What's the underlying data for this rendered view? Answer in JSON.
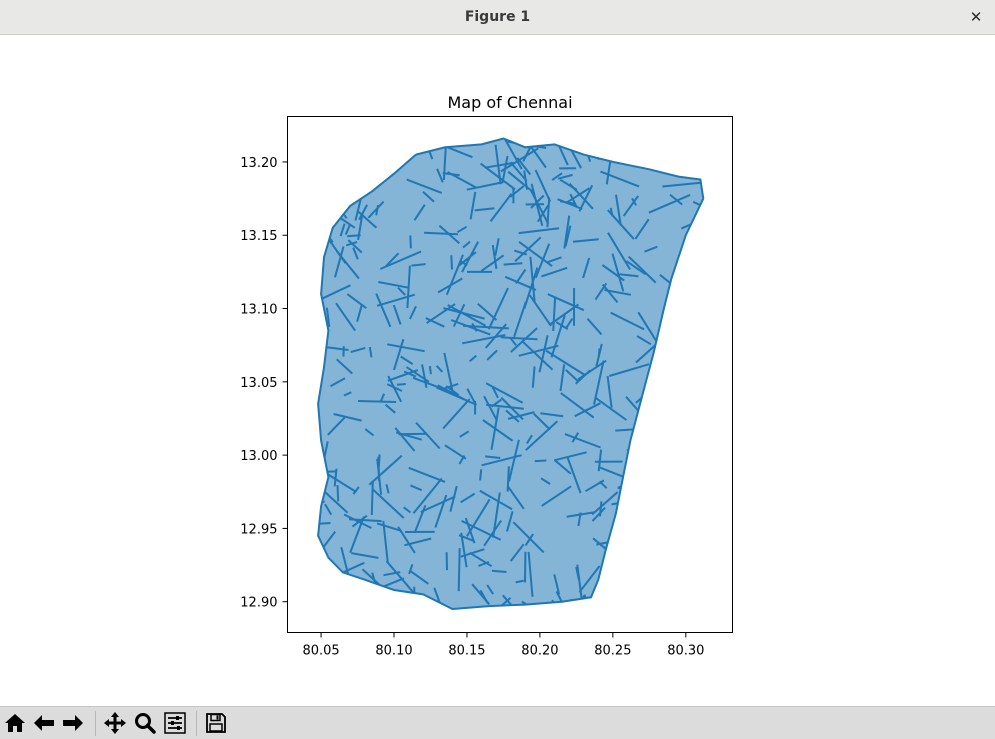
{
  "window": {
    "title": "Figure 1",
    "close_glyph": "✕"
  },
  "figure": {
    "title": "Map of Chennai",
    "line_color": "#1f77b4"
  },
  "chart_data": {
    "type": "line",
    "title": "Map of Chennai",
    "xlabel": "",
    "ylabel": "",
    "x_ticks": [
      "80.05",
      "80.10",
      "80.15",
      "80.20",
      "80.25",
      "80.30"
    ],
    "y_ticks": [
      "13.20",
      "13.15",
      "13.10",
      "13.05",
      "13.00",
      "12.95",
      "12.90"
    ],
    "xlim": [
      80.027,
      80.332
    ],
    "ylim": [
      12.879,
      13.231
    ],
    "grid": false,
    "series": [
      {
        "values": [
          [
            80.115,
            13.205
          ],
          [
            80.135,
            13.21
          ],
          [
            80.16,
            13.212
          ],
          [
            80.175,
            13.216
          ],
          [
            80.19,
            13.21
          ],
          [
            80.21,
            13.212
          ],
          [
            80.23,
            13.205
          ],
          [
            80.25,
            13.2
          ],
          [
            80.275,
            13.195
          ],
          [
            80.295,
            13.19
          ],
          [
            80.31,
            13.188
          ],
          [
            80.312,
            13.175
          ],
          [
            80.3,
            13.15
          ],
          [
            80.29,
            13.12
          ],
          [
            80.285,
            13.1
          ],
          [
            80.278,
            13.07
          ],
          [
            80.27,
            13.04
          ],
          [
            80.262,
            13.01
          ],
          [
            80.258,
            12.99
          ],
          [
            80.252,
            12.96
          ],
          [
            80.245,
            12.935
          ],
          [
            80.24,
            12.915
          ],
          [
            80.235,
            12.903
          ],
          [
            80.215,
            12.9
          ],
          [
            80.19,
            12.898
          ],
          [
            80.165,
            12.897
          ],
          [
            80.14,
            12.895
          ],
          [
            80.12,
            12.905
          ],
          [
            80.1,
            12.908
          ],
          [
            80.08,
            12.915
          ],
          [
            80.065,
            12.92
          ],
          [
            80.055,
            12.93
          ],
          [
            80.048,
            12.945
          ],
          [
            80.05,
            12.965
          ],
          [
            80.055,
            12.985
          ],
          [
            80.05,
            13.01
          ],
          [
            80.048,
            13.035
          ],
          [
            80.052,
            13.06
          ],
          [
            80.055,
            13.085
          ],
          [
            80.05,
            13.11
          ],
          [
            80.052,
            13.135
          ],
          [
            80.058,
            13.155
          ],
          [
            80.07,
            13.17
          ],
          [
            80.085,
            13.18
          ],
          [
            80.1,
            13.192
          ],
          [
            80.115,
            13.205
          ]
        ]
      }
    ]
  },
  "toolbar": {
    "home": "home-icon",
    "back": "arrow-left-icon",
    "forward": "arrow-right-icon",
    "pan": "move-icon",
    "zoom": "magnifier-icon",
    "configure": "sliders-icon",
    "save": "floppy-disk-icon"
  }
}
